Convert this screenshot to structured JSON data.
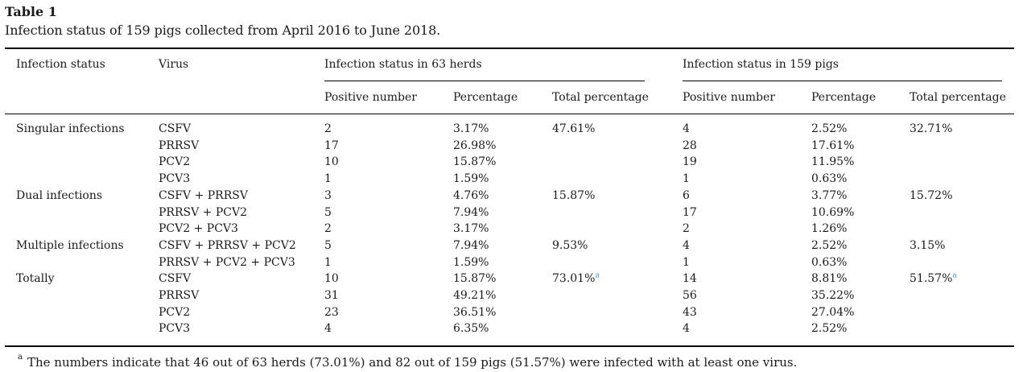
{
  "table_label": "Table 1",
  "caption": "Infection status of 159 pigs collected from April 2016 to June 2018.",
  "headers": {
    "infection_status": "Infection status",
    "virus": "Virus",
    "group_herds": "Infection status in 63 herds",
    "group_pigs": "Infection status in 159 pigs",
    "positive_number": "Positive number",
    "percentage": "Percentage",
    "total_percentage": "Total percentage"
  },
  "rows": [
    {
      "status": "Singular infections",
      "virus": "CSFV",
      "h_pos": "2",
      "h_pct": "3.17%",
      "h_tot": "47.61%",
      "p_pos": "4",
      "p_pct": "2.52%",
      "p_tot": "32.71%"
    },
    {
      "status": "",
      "virus": "PRRSV",
      "h_pos": "17",
      "h_pct": "26.98%",
      "h_tot": "",
      "p_pos": "28",
      "p_pct": "17.61%",
      "p_tot": ""
    },
    {
      "status": "",
      "virus": "PCV2",
      "h_pos": "10",
      "h_pct": "15.87%",
      "h_tot": "",
      "p_pos": "19",
      "p_pct": "11.95%",
      "p_tot": ""
    },
    {
      "status": "",
      "virus": "PCV3",
      "h_pos": "1",
      "h_pct": "1.59%",
      "h_tot": "",
      "p_pos": "1",
      "p_pct": "0.63%",
      "p_tot": ""
    },
    {
      "status": "Dual infections",
      "virus": "CSFV + PRRSV",
      "h_pos": "3",
      "h_pct": "4.76%",
      "h_tot": "15.87%",
      "p_pos": "6",
      "p_pct": "3.77%",
      "p_tot": "15.72%"
    },
    {
      "status": "",
      "virus": "PRRSV + PCV2",
      "h_pos": "5",
      "h_pct": "7.94%",
      "h_tot": "",
      "p_pos": "17",
      "p_pct": "10.69%",
      "p_tot": ""
    },
    {
      "status": "",
      "virus": "PCV2 + PCV3",
      "h_pos": "2",
      "h_pct": "3.17%",
      "h_tot": "",
      "p_pos": "2",
      "p_pct": "1.26%",
      "p_tot": ""
    },
    {
      "status": "Multiple infections",
      "virus": "CSFV + PRRSV + PCV2",
      "h_pos": "5",
      "h_pct": "7.94%",
      "h_tot": "9.53%",
      "p_pos": "4",
      "p_pct": "2.52%",
      "p_tot": "3.15%"
    },
    {
      "status": "",
      "virus": "PRRSV + PCV2 + PCV3",
      "h_pos": "1",
      "h_pct": "1.59%",
      "h_tot": "",
      "p_pos": "1",
      "p_pct": "0.63%",
      "p_tot": ""
    },
    {
      "status": "Totally",
      "virus": "CSFV",
      "h_pos": "10",
      "h_pct": "15.87%",
      "h_tot": "73.01%",
      "h_tot_fn": "a",
      "p_pos": "14",
      "p_pct": "8.81%",
      "p_tot": "51.57%",
      "p_tot_fn": "a"
    },
    {
      "status": "",
      "virus": "PRRSV",
      "h_pos": "31",
      "h_pct": "49.21%",
      "h_tot": "",
      "p_pos": "56",
      "p_pct": "35.22%",
      "p_tot": ""
    },
    {
      "status": "",
      "virus": "PCV2",
      "h_pos": "23",
      "h_pct": "36.51%",
      "h_tot": "",
      "p_pos": "43",
      "p_pct": "27.04%",
      "p_tot": ""
    },
    {
      "status": "",
      "virus": "PCV3",
      "h_pos": "4",
      "h_pct": "6.35%",
      "h_tot": "",
      "p_pos": "4",
      "p_pct": "2.52%",
      "p_tot": ""
    }
  ],
  "footnote": {
    "mark": "a",
    "text": "The numbers indicate that 46 out of 63 herds (73.01%) and 82 out of 159 pigs (51.57%) were infected with at least one virus."
  },
  "colors": {
    "text": "#1a1a1a",
    "rule": "#000000",
    "footnote_link": "#3b8fc7"
  }
}
